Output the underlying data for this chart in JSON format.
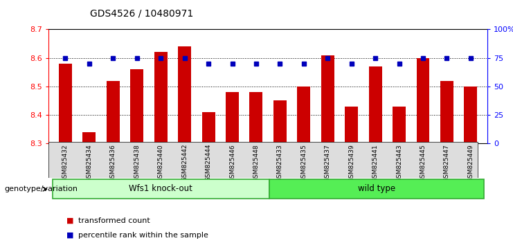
{
  "title": "GDS4526 / 10480971",
  "samples": [
    "GSM825432",
    "GSM825434",
    "GSM825436",
    "GSM825438",
    "GSM825440",
    "GSM825442",
    "GSM825444",
    "GSM825446",
    "GSM825448",
    "GSM825433",
    "GSM825435",
    "GSM825437",
    "GSM825439",
    "GSM825441",
    "GSM825443",
    "GSM825445",
    "GSM825447",
    "GSM825449"
  ],
  "bar_values": [
    8.58,
    8.34,
    8.52,
    8.56,
    8.62,
    8.64,
    8.41,
    8.48,
    8.48,
    8.45,
    8.5,
    8.61,
    8.43,
    8.57,
    8.43,
    8.6,
    8.52,
    8.5
  ],
  "percentile_values": [
    75,
    70,
    75,
    75,
    75,
    75,
    70,
    70,
    70,
    70,
    70,
    75,
    70,
    75,
    70,
    75,
    75,
    75
  ],
  "bar_color": "#cc0000",
  "dot_color": "#0000bb",
  "ylim_left": [
    8.3,
    8.7
  ],
  "ylim_right": [
    0,
    100
  ],
  "yticks_left": [
    8.3,
    8.4,
    8.5,
    8.6,
    8.7
  ],
  "yticks_right": [
    0,
    25,
    50,
    75,
    100
  ],
  "ytick_labels_right": [
    "0",
    "25",
    "50",
    "75",
    "100%"
  ],
  "group1_label": "Wfs1 knock-out",
  "group2_label": "wild type",
  "group1_color": "#ccffcc",
  "group2_color": "#55ee55",
  "group1_count": 9,
  "group2_count": 9,
  "genotype_label": "genotype/variation",
  "legend_bar_label": "transformed count",
  "legend_dot_label": "percentile rank within the sample",
  "background_color": "#ffffff"
}
